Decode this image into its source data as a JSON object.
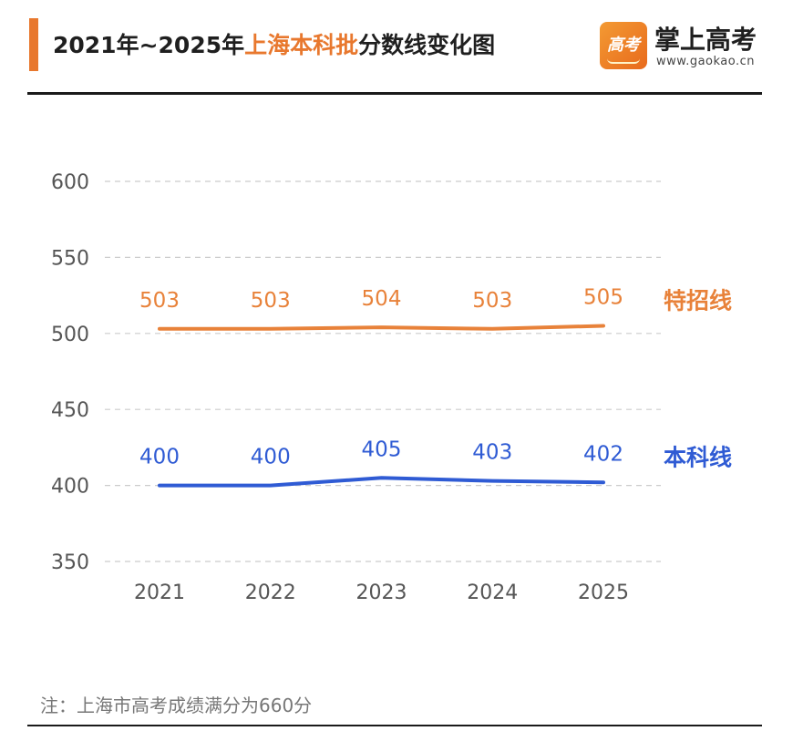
{
  "header": {
    "title_part1": "2021年~2025年",
    "title_highlight": "上海本科批",
    "title_part2": "分数线变化图",
    "logo_glyph": "高考",
    "brand_name": "掌上高考",
    "brand_url": "www.gaokao.cn"
  },
  "footer": {
    "note": "注：上海市高考成绩满分为660分"
  },
  "colors": {
    "accent": "#e8782e",
    "series_special": "#e8823a",
    "series_undergrad": "#2f5bd4",
    "axis_text": "#555555",
    "grid": "#cccccc"
  },
  "chart_data": {
    "type": "line",
    "title": "2021年~2025年上海本科批分数线变化图",
    "categories": [
      "2021",
      "2022",
      "2023",
      "2024",
      "2025"
    ],
    "y_ticks": [
      350,
      400,
      450,
      500,
      550,
      600
    ],
    "ylim": [
      350,
      600
    ],
    "grid": true,
    "series": [
      {
        "name": "特招线",
        "values": [
          503,
          503,
          504,
          503,
          505
        ],
        "color": "#e8823a"
      },
      {
        "name": "本科线",
        "values": [
          400,
          400,
          405,
          403,
          402
        ],
        "color": "#2f5bd4"
      }
    ]
  }
}
